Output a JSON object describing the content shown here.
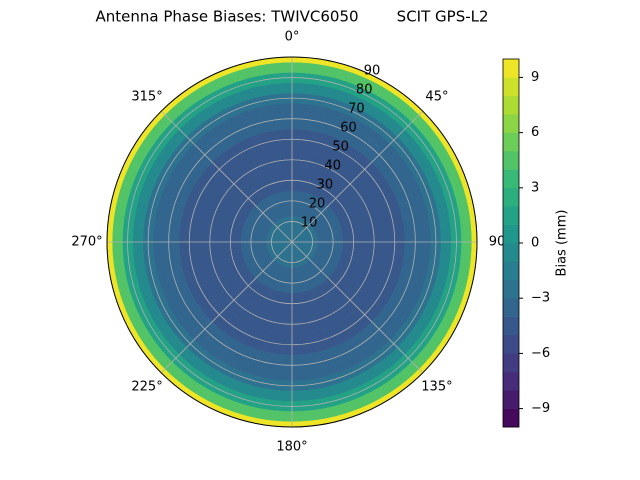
{
  "chart_data": {
    "type": "polar-contour",
    "title": "Antenna Phase Biases: TWIVC6050        SCIT GPS-L2",
    "zenith": [
      0,
      5,
      10,
      15,
      20,
      30,
      40,
      50,
      60,
      65,
      70,
      75,
      80,
      85,
      90
    ],
    "values": [
      -2.5,
      -2.5,
      -3,
      -3.5,
      -4,
      -4.5,
      -4.5,
      -4.5,
      -4,
      -3.5,
      -2.5,
      -1,
      1,
      4.5,
      9.5
    ],
    "rlim": [
      0,
      90
    ],
    "rticks": [
      10,
      20,
      30,
      40,
      50,
      60,
      70,
      80,
      90
    ],
    "thetaticks": [
      {
        "value": 0,
        "label": "0°"
      },
      {
        "value": 45,
        "label": "45°"
      },
      {
        "value": 90,
        "label": "90"
      },
      {
        "value": 135,
        "label": "135°"
      },
      {
        "value": 180,
        "label": "180°"
      },
      {
        "value": 225,
        "label": "225°"
      },
      {
        "value": 270,
        "label": "270°"
      },
      {
        "value": 315,
        "label": "315°"
      }
    ],
    "clim": [
      -10,
      10
    ],
    "nlevels": 20,
    "cticks": [
      {
        "value": -9,
        "label": "−9"
      },
      {
        "value": -6,
        "label": "−6"
      },
      {
        "value": -3,
        "label": "−3"
      },
      0,
      3,
      6,
      9
    ],
    "colorbar_label": "Bias (mm)",
    "grid": true
  }
}
